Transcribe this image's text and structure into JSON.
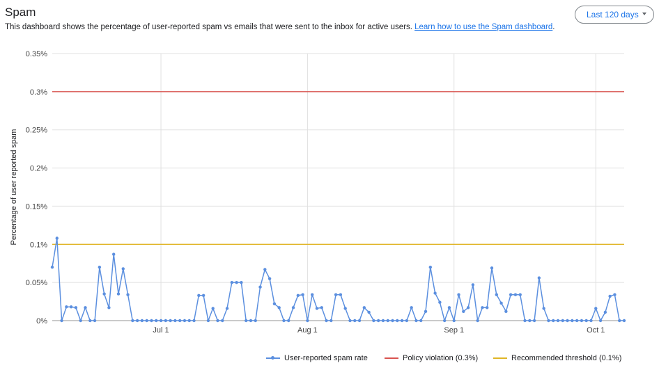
{
  "header": {
    "title": "Spam",
    "description": "This dashboard shows the percentage of user-reported spam vs emails that were sent to the inbox for active users.",
    "link_text": "Learn how to use the Spam dashboard",
    "link_suffix": "."
  },
  "range_selector": {
    "label": "Last 120 days"
  },
  "colors": {
    "series": "#5b8fdf",
    "policy": "#d9534f",
    "threshold": "#e0b526",
    "grid": "#e0e0e0",
    "axis": "#aaaaaa"
  },
  "chart_data": {
    "type": "line",
    "ylabel": "Percentage of user reported spam",
    "ylim": [
      0,
      0.35
    ],
    "yticks": [
      {
        "value": 0,
        "label": "0%"
      },
      {
        "value": 0.05,
        "label": "0.05%"
      },
      {
        "value": 0.1,
        "label": "0.1%"
      },
      {
        "value": 0.15,
        "label": "0.15%"
      },
      {
        "value": 0.2,
        "label": "0.2%"
      },
      {
        "value": 0.25,
        "label": "0.25%"
      },
      {
        "value": 0.3,
        "label": "0.3%"
      },
      {
        "value": 0.35,
        "label": "0.35%"
      }
    ],
    "xticks": [
      {
        "label": "Jul 1",
        "day": 23
      },
      {
        "label": "Aug 1",
        "day": 54
      },
      {
        "label": "Sep 1",
        "day": 85
      },
      {
        "label": "Oct 1",
        "day": 115
      }
    ],
    "series": [
      {
        "name": "User-reported spam rate",
        "values": [
          0.07,
          0.108,
          0,
          0.018,
          0.018,
          0.017,
          0,
          0.017,
          0,
          0,
          0.07,
          0.035,
          0.017,
          0.087,
          0.035,
          0.068,
          0.034,
          0,
          0,
          0,
          0,
          0,
          0,
          0,
          0,
          0,
          0,
          0,
          0,
          0,
          0,
          0.033,
          0.033,
          0,
          0.016,
          0,
          0,
          0.016,
          0.05,
          0.05,
          0.05,
          0,
          0,
          0,
          0.044,
          0.067,
          0.055,
          0.022,
          0.017,
          0,
          0,
          0.017,
          0.033,
          0.034,
          0,
          0.034,
          0.016,
          0.017,
          0,
          0,
          0.034,
          0.034,
          0.016,
          0,
          0,
          0,
          0.017,
          0.011,
          0,
          0,
          0,
          0,
          0,
          0,
          0,
          0,
          0.017,
          0,
          0,
          0.012,
          0.07,
          0.036,
          0.024,
          0,
          0.017,
          0,
          0.034,
          0.012,
          0.017,
          0.047,
          0,
          0.017,
          0.017,
          0.069,
          0.034,
          0.023,
          0.012,
          0.034,
          0.034,
          0.034,
          0,
          0,
          0,
          0.056,
          0.016,
          0,
          0,
          0,
          0,
          0,
          0,
          0,
          0,
          0,
          0,
          0.016,
          0,
          0.011,
          0.032,
          0.034,
          0,
          0
        ]
      },
      {
        "name": "Policy violation (0.3%)",
        "constant": 0.3
      },
      {
        "name": "Recommended threshold (0.1%)",
        "constant": 0.1
      }
    ]
  }
}
